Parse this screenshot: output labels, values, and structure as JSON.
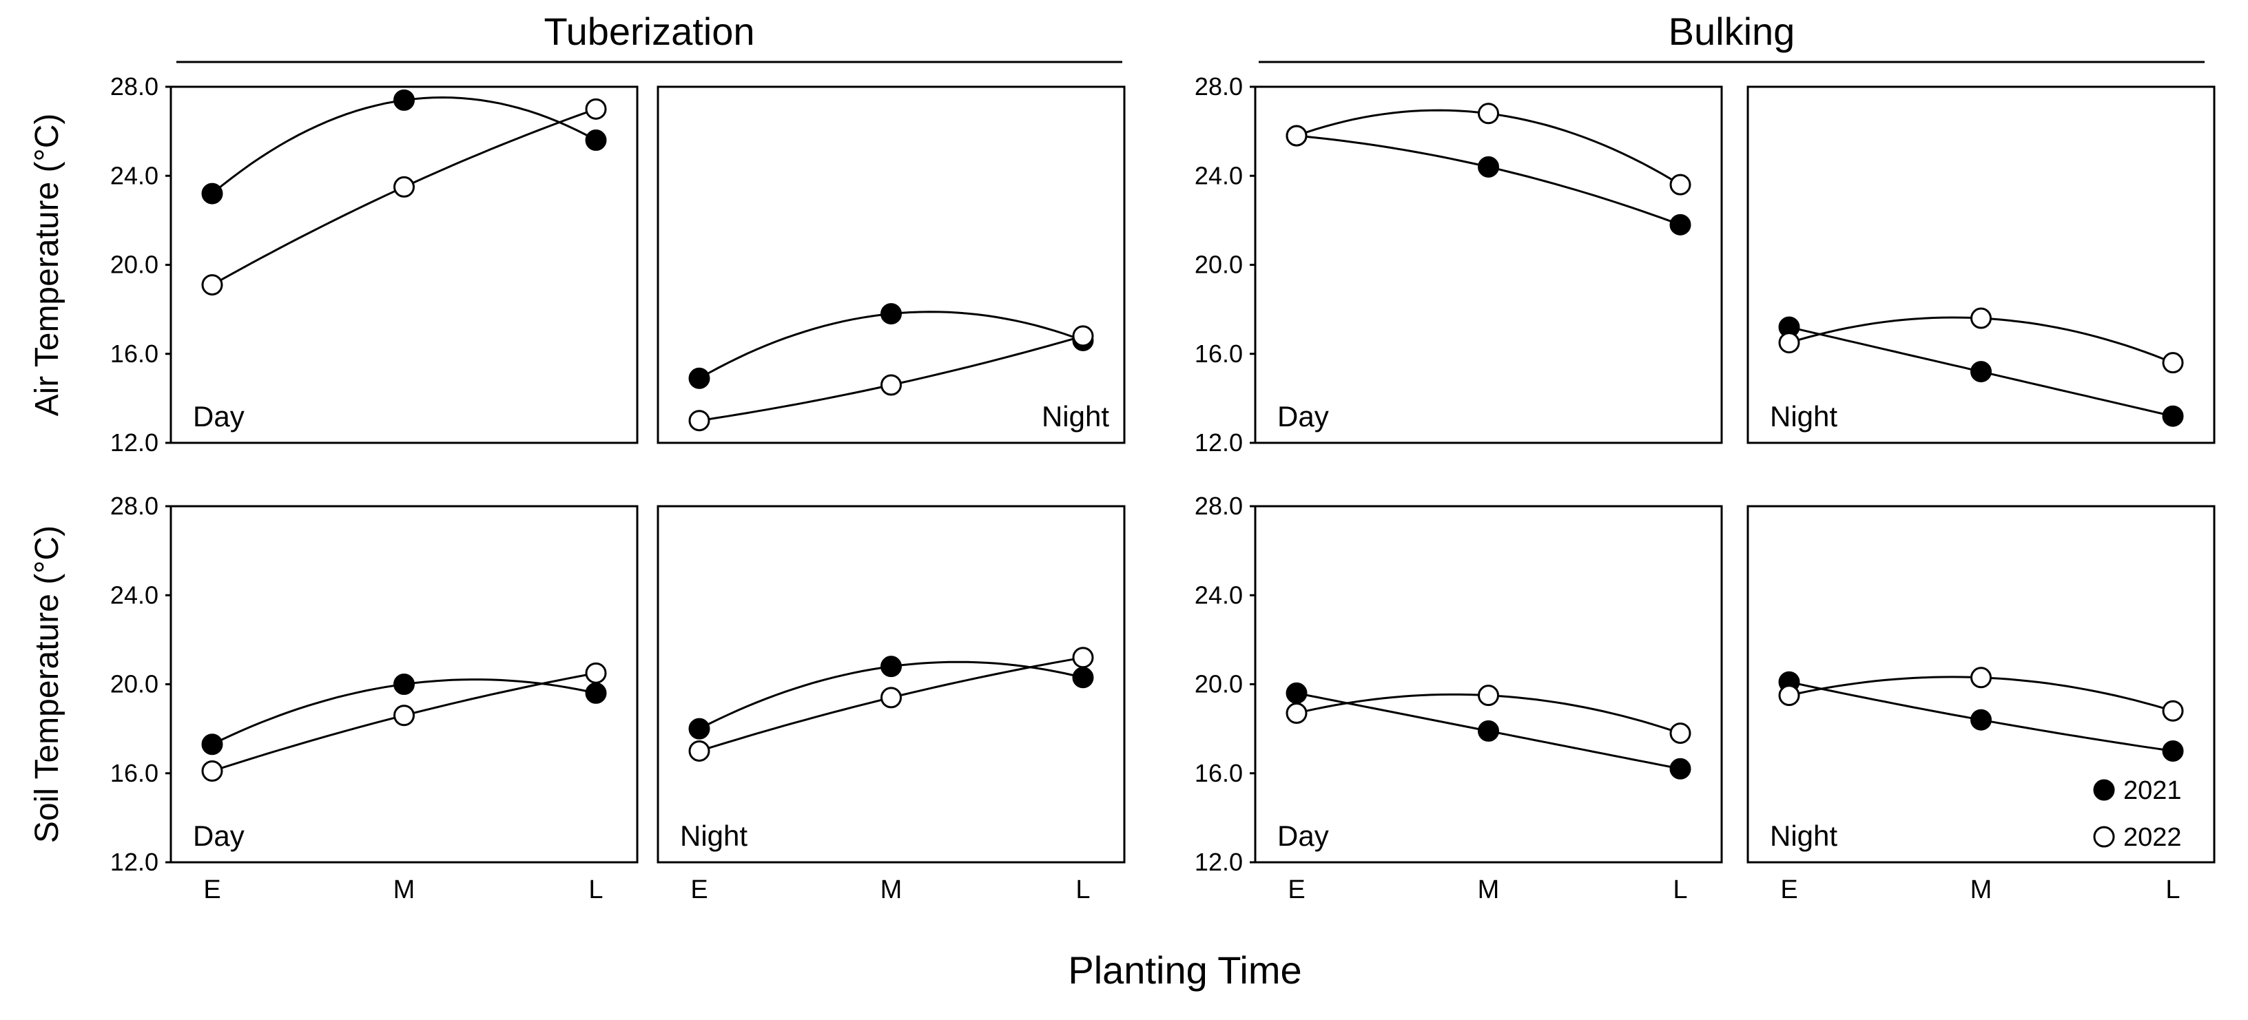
{
  "chart_data": {
    "type": "scatter",
    "stages": [
      {
        "title": "Tuberization"
      },
      {
        "title": "Bulking"
      }
    ],
    "rows": [
      {
        "ylabel": "Air Temperature (°C)"
      },
      {
        "ylabel": "Soil Temperature (°C)"
      }
    ],
    "xlabel": "Planting Time",
    "categories": [
      "E",
      "M",
      "L"
    ],
    "ylim": [
      12,
      28
    ],
    "yticks": [
      "12.0",
      "16.0",
      "20.0",
      "24.0",
      "28.0"
    ],
    "legend": [
      {
        "name": "2021",
        "marker": "filled circle"
      },
      {
        "name": "2022",
        "marker": "open circle"
      }
    ],
    "colors": {
      "marker": "#000000",
      "background": "#ffffff"
    },
    "panels": [
      {
        "row": 0,
        "stage": 0,
        "period": "Day",
        "label_pos": "left",
        "series": [
          {
            "year": "2021",
            "values": [
              23.2,
              27.4,
              25.6
            ],
            "fit": "quadratic"
          },
          {
            "year": "2022",
            "values": [
              19.1,
              23.5,
              27.0
            ],
            "fit": "quadratic"
          }
        ]
      },
      {
        "row": 0,
        "stage": 0,
        "period": "Night",
        "label_pos": "right",
        "series": [
          {
            "year": "2021",
            "values": [
              14.9,
              17.8,
              16.6
            ],
            "fit": "quadratic"
          },
          {
            "year": "2022",
            "values": [
              13.0,
              14.6,
              16.8
            ],
            "fit": "quadratic"
          }
        ]
      },
      {
        "row": 0,
        "stage": 1,
        "period": "Day",
        "label_pos": "left",
        "series": [
          {
            "year": "2021",
            "values": [
              25.8,
              24.4,
              21.8
            ],
            "fit": "quadratic"
          },
          {
            "year": "2022",
            "values": [
              25.8,
              26.8,
              23.6
            ],
            "fit": "quadratic"
          }
        ]
      },
      {
        "row": 0,
        "stage": 1,
        "period": "Night",
        "label_pos": "left",
        "series": [
          {
            "year": "2021",
            "values": [
              17.2,
              15.2,
              13.2
            ],
            "fit": "quadratic"
          },
          {
            "year": "2022",
            "values": [
              16.5,
              17.6,
              15.6
            ],
            "fit": "quadratic"
          }
        ]
      },
      {
        "row": 1,
        "stage": 0,
        "period": "Day",
        "label_pos": "left",
        "series": [
          {
            "year": "2021",
            "values": [
              17.3,
              20.0,
              19.6
            ],
            "fit": "quadratic"
          },
          {
            "year": "2022",
            "values": [
              16.1,
              18.6,
              20.5
            ],
            "fit": "quadratic"
          }
        ]
      },
      {
        "row": 1,
        "stage": 0,
        "period": "Night",
        "label_pos": "left",
        "series": [
          {
            "year": "2021",
            "values": [
              18.0,
              20.8,
              20.3
            ],
            "fit": "quadratic"
          },
          {
            "year": "2022",
            "values": [
              17.0,
              19.4,
              21.2
            ],
            "fit": "quadratic"
          }
        ]
      },
      {
        "row": 1,
        "stage": 1,
        "period": "Day",
        "label_pos": "left",
        "series": [
          {
            "year": "2021",
            "values": [
              19.6,
              17.9,
              16.2
            ],
            "fit": "quadratic"
          },
          {
            "year": "2022",
            "values": [
              18.7,
              19.5,
              17.8
            ],
            "fit": "quadratic"
          }
        ]
      },
      {
        "row": 1,
        "stage": 1,
        "period": "Night",
        "label_pos": "left",
        "series": [
          {
            "year": "2021",
            "values": [
              20.1,
              18.4,
              17.0
            ],
            "fit": "quadratic"
          },
          {
            "year": "2022",
            "values": [
              19.5,
              20.3,
              18.8
            ],
            "fit": "quadratic"
          }
        ]
      }
    ]
  }
}
